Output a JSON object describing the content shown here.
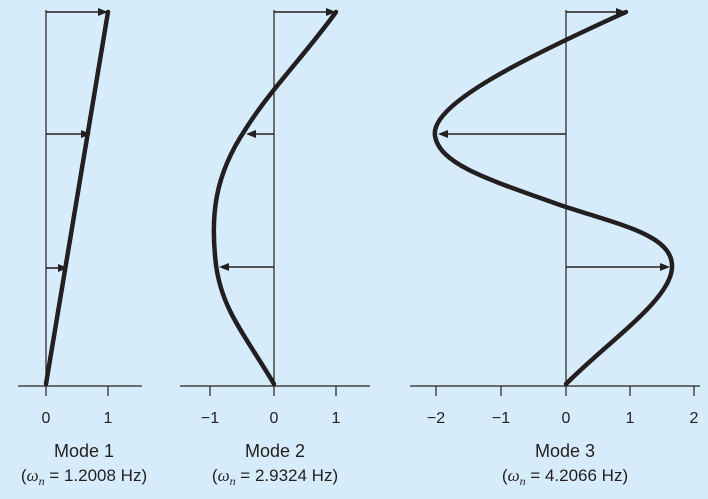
{
  "modes": [
    {
      "title": "Mode 1",
      "freq_prefix": "(",
      "omega": "ω",
      "sub": "n",
      "freq_eq": " = 1.2008 Hz)",
      "ticks": [
        "0",
        "1"
      ],
      "displacements": [
        1.0,
        0.7,
        0.3,
        0.0
      ]
    },
    {
      "title": "Mode 2",
      "freq_prefix": "(",
      "omega": "ω",
      "sub": "n",
      "freq_eq": " = 2.9324 Hz)",
      "ticks": [
        "−1",
        "0",
        "1"
      ],
      "displacements": [
        1.0,
        -0.45,
        -0.85,
        0.0
      ]
    },
    {
      "title": "Mode 3",
      "freq_prefix": "(",
      "omega": "ω",
      "sub": "n",
      "freq_eq": " = 4.2066 Hz)",
      "ticks": [
        "−2",
        "−1",
        "0",
        "1",
        "2"
      ],
      "displacements": [
        1.0,
        -2.05,
        1.65,
        0.0
      ]
    }
  ]
}
